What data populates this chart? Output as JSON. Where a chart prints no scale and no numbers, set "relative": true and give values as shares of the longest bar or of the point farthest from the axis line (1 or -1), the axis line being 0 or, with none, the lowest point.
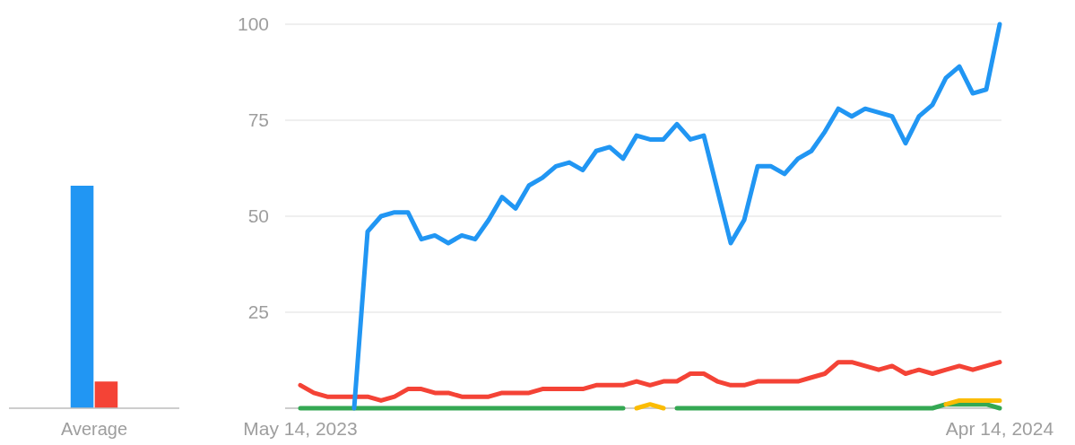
{
  "chart_data": [
    {
      "type": "bar",
      "categories": [
        "Average"
      ],
      "relative": true,
      "series": [
        {
          "color": "#2196f3",
          "values": [
            1
          ]
        },
        {
          "color": "#f44336",
          "values": [
            0.12
          ]
        }
      ]
    },
    {
      "type": "line",
      "categories": [
        "May 14, 2023",
        null,
        null,
        null,
        null,
        null,
        null,
        null,
        null,
        null,
        null,
        null,
        null,
        null,
        null,
        null,
        null,
        null,
        null,
        null,
        null,
        null,
        null,
        null,
        null,
        null,
        null,
        null,
        null,
        null,
        null,
        null,
        null,
        null,
        null,
        null,
        null,
        null,
        null,
        null,
        null,
        null,
        null,
        null,
        null,
        null,
        null,
        null,
        null,
        null,
        null,
        null,
        "Apr 14, 2024"
      ],
      "ylim": [
        0,
        100
      ],
      "yticks": [
        {
          "value": 0,
          "label": null
        },
        25,
        50,
        75,
        100
      ],
      "grid": "y",
      "line_style": "solid",
      "marker": "none",
      "series": [
        {
          "color": "#34a853",
          "values": [
            0,
            0,
            0,
            0,
            0,
            0,
            0,
            0,
            0,
            0,
            0,
            0,
            0,
            0,
            0,
            0,
            0,
            0,
            0,
            0,
            0,
            0,
            0,
            0,
            0,
            null,
            null,
            null,
            0,
            0,
            0,
            0,
            0,
            0,
            0,
            0,
            0,
            0,
            0,
            0,
            0,
            0,
            0,
            0,
            0,
            0,
            0,
            0,
            1,
            1,
            1,
            1,
            0
          ]
        },
        {
          "color": "#fbbc04",
          "values": [
            null,
            null,
            null,
            null,
            null,
            null,
            null,
            null,
            null,
            null,
            null,
            null,
            null,
            null,
            null,
            null,
            null,
            null,
            null,
            null,
            null,
            null,
            null,
            null,
            null,
            0,
            1,
            0,
            null,
            null,
            null,
            null,
            null,
            null,
            null,
            null,
            null,
            null,
            null,
            null,
            null,
            null,
            null,
            null,
            null,
            null,
            null,
            null,
            1,
            2,
            2,
            2,
            2
          ]
        },
        {
          "color": "#f44336",
          "values": [
            6,
            4,
            3,
            3,
            3,
            3,
            2,
            3,
            5,
            5,
            4,
            4,
            3,
            3,
            3,
            4,
            4,
            4,
            5,
            5,
            5,
            5,
            6,
            6,
            6,
            7,
            6,
            7,
            7,
            9,
            9,
            7,
            6,
            6,
            7,
            7,
            7,
            7,
            8,
            9,
            12,
            12,
            11,
            10,
            11,
            9,
            10,
            9,
            10,
            11,
            10,
            11,
            12
          ]
        },
        {
          "color": "#2196f3",
          "values": [
            null,
            null,
            null,
            null,
            0,
            46,
            50,
            51,
            51,
            44,
            45,
            43,
            45,
            44,
            49,
            55,
            52,
            58,
            60,
            63,
            64,
            62,
            67,
            68,
            65,
            71,
            70,
            70,
            74,
            70,
            71,
            57,
            43,
            49,
            63,
            63,
            61,
            65,
            67,
            72,
            78,
            76,
            78,
            77,
            76,
            69,
            76,
            79,
            86,
            89,
            82,
            83,
            100
          ]
        }
      ]
    }
  ]
}
